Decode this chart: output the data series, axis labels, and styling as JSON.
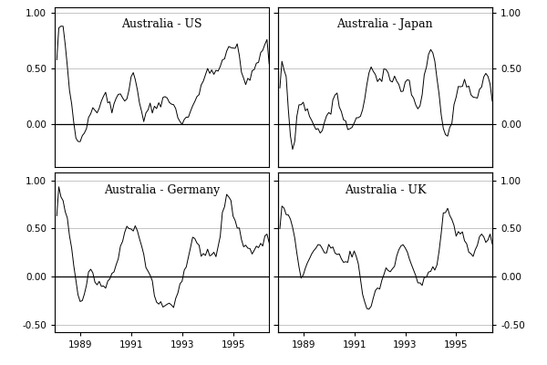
{
  "titles": [
    "Australia - US",
    "Australia - Japan",
    "Australia - Germany",
    "Australia - UK"
  ],
  "xtick_years": [
    1989,
    1991,
    1993,
    1995
  ],
  "line_color": "#000000",
  "line_width": 0.7,
  "bg_color": "#ffffff",
  "grid_color": "#bbbbbb",
  "font_size_title": 9,
  "font_size_tick": 7.5
}
